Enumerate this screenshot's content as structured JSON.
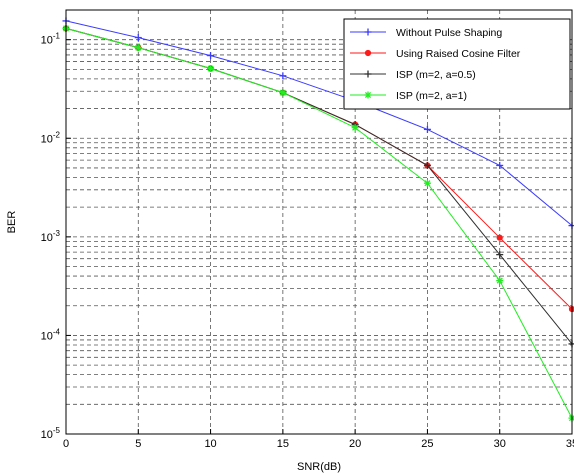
{
  "chart_data": {
    "type": "line",
    "title": "",
    "xlabel": "SNR(dB)",
    "ylabel": "BER",
    "xlim": [
      0,
      35
    ],
    "ylim": [
      1e-05,
      0.2
    ],
    "y_scale": "log",
    "grid": true,
    "grid_style": "dashed",
    "legend_position": "top-right",
    "x_ticks": [
      0,
      5,
      10,
      15,
      20,
      25,
      30,
      35
    ],
    "x_tick_labels": [
      "0",
      "5",
      "10",
      "15",
      "20",
      "25",
      "30",
      "35"
    ],
    "y_ticks": [
      1e-05,
      0.0001,
      0.001,
      0.01,
      0.1
    ],
    "y_tick_labels": [
      {
        "base": "10",
        "exp": "-5"
      },
      {
        "base": "10",
        "exp": "-4"
      },
      {
        "base": "10",
        "exp": "-3"
      },
      {
        "base": "10",
        "exp": "-2"
      },
      {
        "base": "10",
        "exp": "-1"
      }
    ],
    "x": [
      0,
      5,
      10,
      15,
      20,
      25,
      30,
      35
    ],
    "series": [
      {
        "name": "Without Pulse Shaping",
        "color": "#3b3bff",
        "marker": "plus",
        "values": [
          0.155,
          0.105,
          0.069,
          0.043,
          0.024,
          0.0123,
          0.0053,
          0.0013
        ]
      },
      {
        "name": "Using Raised Cosine Filter",
        "color": "#ff1a1a",
        "marker": "dot",
        "values": [
          0.13,
          0.083,
          0.051,
          0.029,
          0.0138,
          0.0053,
          0.00098,
          0.000185
        ]
      },
      {
        "name": "ISP (m=2, a=0.5)",
        "color": "#303030",
        "marker": "plus",
        "values": [
          0.13,
          0.083,
          0.051,
          0.029,
          0.0138,
          0.0053,
          0.00066,
          8.2e-05
        ]
      },
      {
        "name": "ISP (m=2, a=1)",
        "color": "#22ee22",
        "marker": "star",
        "values": [
          0.13,
          0.083,
          0.051,
          0.029,
          0.0128,
          0.0035,
          0.00036,
          1.45e-05
        ]
      }
    ]
  }
}
